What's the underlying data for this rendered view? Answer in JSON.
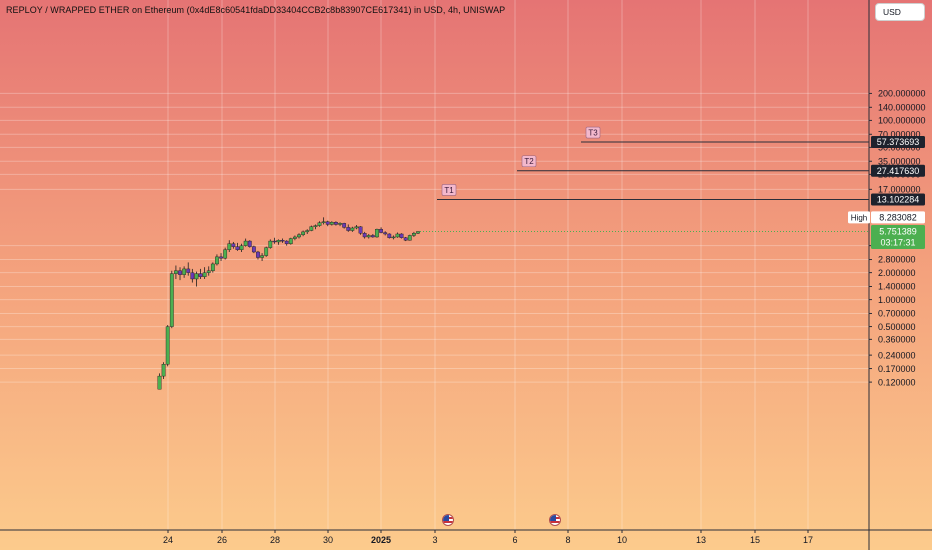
{
  "chart_title": "REPLOY / WRAPPED ETHER on Ethereum (0x4dE8c60541fdaDD33404CCB2c8b83907CE617341) in USD, 4h, UNISWAP",
  "currency_button": "USD",
  "icons": [
    "us-flag-icon"
  ],
  "colors": {
    "bg_top": "#e57474",
    "bg_bottom": "#fccb8c",
    "up_candle": "#4caf50",
    "down_candle": "#6a3ab5",
    "last_price_bg": "#4caf50",
    "target_label_bg": "#f3b8cc",
    "price_tag_bg": "#1e222d"
  },
  "chart_data": {
    "type": "candlestick",
    "title": "REPLOY / WRAPPED ETHER on Ethereum (0x4dE8c60541fdaDD33404CCB2c8b83907CE617341) in USD, 4h, UNISWAP",
    "interval": "4h",
    "y_scale": "log",
    "ylim": [
      0.105,
      250
    ],
    "grid": true,
    "x_tick_labels": [
      "24",
      "26",
      "28",
      "30",
      "2025",
      "3",
      "6",
      "8",
      "10",
      "13",
      "15",
      "17"
    ],
    "y_tick_labels": [
      "0.120000",
      "0.170000",
      "0.240000",
      "0.360000",
      "0.500000",
      "0.700000",
      "1.000000",
      "1.400000",
      "2.000000",
      "2.800000",
      "4.000000",
      "17.000000",
      "25.000000",
      "35.000000",
      "50.000000",
      "70.000000",
      "100.000000",
      "140.000000",
      "200.000000"
    ],
    "y_ticks": [
      0.12,
      0.17,
      0.24,
      0.36,
      0.5,
      0.7,
      1.0,
      1.4,
      2.0,
      2.8,
      4.0,
      17.0,
      25.0,
      35.0,
      50.0,
      70.0,
      100.0,
      140.0,
      200.0
    ],
    "target_lines": [
      {
        "label": "T1",
        "value": 13.102284,
        "value_text": "13.102284"
      },
      {
        "label": "T2",
        "value": 27.41763,
        "value_text": "27.417630"
      },
      {
        "label": "T3",
        "value": 57.373693,
        "value_text": "57.373693"
      }
    ],
    "high": {
      "label": "High",
      "value": 8.283082,
      "value_text": "8.283082"
    },
    "last_price": {
      "value": 5.751389,
      "value_text": "5.751389",
      "countdown": "03:17:31"
    },
    "candles": [
      [
        0.1,
        0.15,
        0.1,
        0.14
      ],
      [
        0.14,
        0.2,
        0.13,
        0.19
      ],
      [
        0.19,
        0.52,
        0.18,
        0.5
      ],
      [
        0.5,
        2.1,
        0.48,
        1.95
      ],
      [
        1.95,
        2.4,
        1.7,
        2.1
      ],
      [
        2.1,
        2.3,
        1.65,
        1.9
      ],
      [
        1.9,
        2.35,
        1.75,
        2.2
      ],
      [
        2.2,
        2.6,
        1.85,
        2.0
      ],
      [
        2.0,
        2.2,
        1.55,
        1.7
      ],
      [
        1.7,
        2.05,
        1.4,
        1.95
      ],
      [
        1.95,
        2.2,
        1.7,
        1.8
      ],
      [
        1.8,
        2.3,
        1.7,
        2.0
      ],
      [
        2.0,
        2.35,
        1.85,
        2.1
      ],
      [
        2.1,
        2.6,
        2.0,
        2.5
      ],
      [
        2.5,
        3.2,
        2.4,
        3.0
      ],
      [
        3.0,
        3.3,
        2.7,
        2.9
      ],
      [
        2.9,
        3.8,
        2.8,
        3.6
      ],
      [
        3.6,
        4.6,
        3.4,
        4.2
      ],
      [
        4.2,
        4.4,
        3.7,
        3.9
      ],
      [
        3.9,
        4.3,
        3.5,
        3.6
      ],
      [
        3.6,
        4.2,
        3.4,
        4.0
      ],
      [
        4.0,
        4.8,
        3.9,
        4.5
      ],
      [
        4.5,
        4.6,
        3.8,
        3.9
      ],
      [
        3.9,
        4.0,
        3.3,
        3.4
      ],
      [
        3.4,
        3.5,
        2.8,
        2.95
      ],
      [
        2.95,
        3.3,
        2.7,
        3.1
      ],
      [
        3.1,
        3.9,
        3.0,
        3.8
      ],
      [
        3.8,
        4.7,
        3.7,
        4.5
      ],
      [
        4.5,
        4.9,
        4.2,
        4.4
      ],
      [
        4.4,
        4.7,
        4.1,
        4.6
      ],
      [
        4.6,
        4.8,
        4.3,
        4.5
      ],
      [
        4.5,
        4.6,
        4.0,
        4.2
      ],
      [
        4.2,
        4.9,
        4.1,
        4.8
      ],
      [
        4.8,
        5.2,
        4.6,
        5.0
      ],
      [
        5.0,
        5.5,
        4.8,
        5.3
      ],
      [
        5.3,
        5.9,
        5.1,
        5.7
      ],
      [
        5.7,
        6.1,
        5.4,
        5.9
      ],
      [
        5.9,
        6.7,
        5.8,
        6.5
      ],
      [
        6.5,
        6.9,
        6.1,
        6.7
      ],
      [
        6.7,
        7.5,
        6.5,
        7.2
      ],
      [
        7.2,
        8.28,
        6.9,
        7.4
      ],
      [
        7.4,
        7.6,
        6.6,
        6.9
      ],
      [
        6.9,
        7.5,
        6.7,
        7.3
      ],
      [
        7.3,
        7.5,
        6.7,
        6.9
      ],
      [
        6.9,
        7.3,
        6.6,
        7.1
      ],
      [
        7.1,
        7.2,
        6.2,
        6.4
      ],
      [
        6.4,
        6.9,
        5.7,
        5.9
      ],
      [
        5.9,
        6.5,
        5.7,
        6.3
      ],
      [
        6.3,
        6.8,
        6.1,
        6.5
      ],
      [
        6.5,
        6.6,
        5.3,
        5.5
      ],
      [
        5.5,
        5.7,
        4.8,
        5.0
      ],
      [
        5.0,
        5.4,
        4.8,
        5.2
      ],
      [
        5.2,
        5.4,
        4.9,
        5.0
      ],
      [
        5.0,
        6.2,
        4.9,
        6.1
      ],
      [
        6.1,
        6.4,
        5.5,
        5.6
      ],
      [
        5.6,
        5.8,
        5.2,
        5.4
      ],
      [
        5.4,
        5.5,
        4.8,
        4.9
      ],
      [
        4.9,
        5.2,
        4.7,
        5.0
      ],
      [
        5.0,
        5.6,
        4.9,
        5.4
      ],
      [
        5.4,
        5.5,
        4.8,
        4.9
      ],
      [
        4.9,
        5.0,
        4.5,
        4.6
      ],
      [
        4.6,
        5.3,
        4.55,
        5.2
      ],
      [
        5.2,
        5.7,
        5.0,
        5.5
      ],
      [
        5.5,
        5.8,
        5.4,
        5.75
      ]
    ]
  }
}
